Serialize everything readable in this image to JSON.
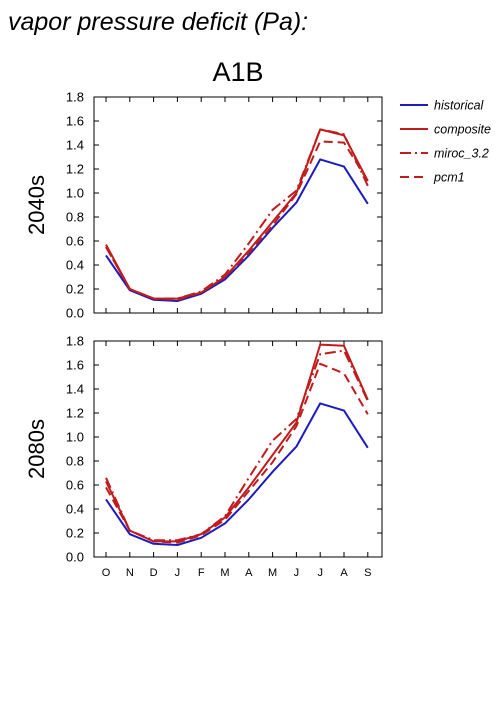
{
  "title": "vapor pressure deficit (Pa):",
  "scenario": "A1B",
  "colors": {
    "historical": "#1c1cbf",
    "future": "#c01c1c"
  },
  "legend": [
    {
      "name": "historical",
      "style": "solid",
      "color": "#1c1cbf"
    },
    {
      "name": "composite",
      "style": "solid",
      "color": "#c01c1c"
    },
    {
      "name": "miroc_3.2",
      "style": "dashdot",
      "color": "#c01c1c"
    },
    {
      "name": "pcm1",
      "style": "dash",
      "color": "#c01c1c"
    }
  ],
  "chart_data": [
    {
      "type": "line",
      "panel_label": "2040s",
      "categories": [
        "O",
        "N",
        "D",
        "J",
        "F",
        "M",
        "A",
        "M",
        "J",
        "J",
        "A",
        "S"
      ],
      "ylim": [
        0,
        1.8
      ],
      "yticks": [
        "0.0",
        "0.2",
        "0.4",
        "0.6",
        "0.8",
        "1.0",
        "1.2",
        "1.4",
        "1.6",
        "1.8"
      ],
      "series": [
        {
          "name": "historical",
          "values": [
            0.48,
            0.19,
            0.11,
            0.1,
            0.16,
            0.28,
            0.48,
            0.71,
            0.92,
            1.28,
            1.22,
            0.91
          ]
        },
        {
          "name": "composite",
          "values": [
            0.57,
            0.2,
            0.12,
            0.12,
            0.17,
            0.3,
            0.52,
            0.76,
            1.0,
            1.53,
            1.48,
            1.1
          ]
        },
        {
          "name": "miroc_3.2",
          "values": [
            0.55,
            0.2,
            0.12,
            0.12,
            0.18,
            0.32,
            0.58,
            0.86,
            1.02,
            1.53,
            1.49,
            1.06
          ]
        },
        {
          "name": "pcm1",
          "values": [
            0.55,
            0.2,
            0.12,
            0.11,
            0.17,
            0.3,
            0.5,
            0.73,
            0.99,
            1.43,
            1.42,
            1.1
          ]
        }
      ]
    },
    {
      "type": "line",
      "panel_label": "2080s",
      "categories": [
        "O",
        "N",
        "D",
        "J",
        "F",
        "M",
        "A",
        "M",
        "J",
        "J",
        "A",
        "S"
      ],
      "ylim": [
        0,
        1.8
      ],
      "yticks": [
        "0.0",
        "0.2",
        "0.4",
        "0.6",
        "0.8",
        "1.0",
        "1.2",
        "1.4",
        "1.6",
        "1.8"
      ],
      "series": [
        {
          "name": "historical",
          "values": [
            0.48,
            0.19,
            0.11,
            0.1,
            0.16,
            0.28,
            0.48,
            0.71,
            0.92,
            1.28,
            1.22,
            0.91
          ]
        },
        {
          "name": "composite",
          "values": [
            0.63,
            0.22,
            0.13,
            0.13,
            0.19,
            0.33,
            0.58,
            0.85,
            1.12,
            1.77,
            1.76,
            1.31
          ]
        },
        {
          "name": "miroc_3.2",
          "values": [
            0.66,
            0.22,
            0.14,
            0.14,
            0.19,
            0.34,
            0.66,
            0.97,
            1.15,
            1.69,
            1.72,
            1.3
          ]
        },
        {
          "name": "pcm1",
          "values": [
            0.58,
            0.22,
            0.13,
            0.12,
            0.18,
            0.31,
            0.55,
            0.79,
            1.09,
            1.61,
            1.53,
            1.19
          ]
        }
      ]
    }
  ]
}
